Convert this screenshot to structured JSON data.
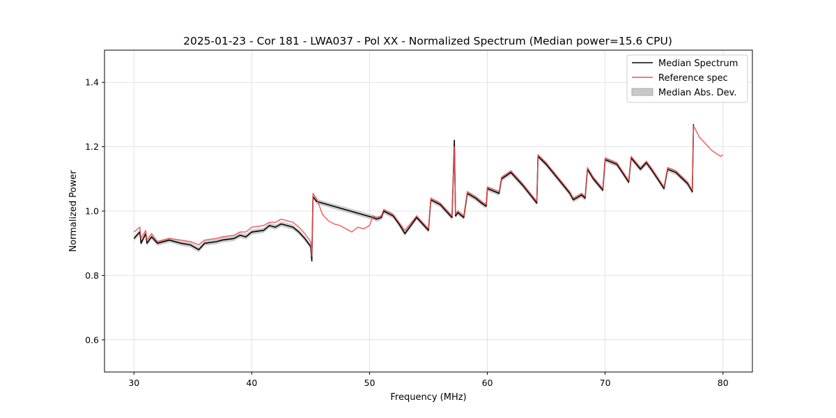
{
  "chart_data": {
    "type": "line",
    "title": "2025-01-23 - Cor 181 - LWA037 - Pol XX - Normalized Spectrum (Median power=15.6 CPU)",
    "xlabel": "Frequency (MHz)",
    "ylabel": "Normalized Power",
    "xlim": [
      27.5,
      82.5
    ],
    "ylim": [
      0.5,
      1.5
    ],
    "xticks": [
      30,
      40,
      50,
      60,
      70,
      80
    ],
    "yticks": [
      0.6,
      0.8,
      1.0,
      1.2,
      1.4
    ],
    "grid": true,
    "legend_position": "top-right",
    "colors": {
      "median": "#000000",
      "reference": "#f05050",
      "mad_fill": "#bbbbbb"
    },
    "series": [
      {
        "name": "Median Spectrum",
        "x": [
          30.0,
          30.5,
          30.6,
          31.0,
          31.1,
          31.5,
          32.0,
          33.0,
          34.0,
          34.8,
          35.5,
          36.0,
          37.0,
          37.5,
          38.5,
          39.0,
          39.5,
          40.0,
          41.0,
          41.5,
          42.0,
          42.5,
          43.0,
          43.5,
          44.0,
          44.5,
          45.0,
          45.1,
          45.2,
          45.5,
          50.3,
          50.6,
          51.0,
          51.2,
          52.0,
          52.5,
          53.0,
          54.0,
          55.0,
          55.2,
          56.0,
          57.0,
          57.2,
          57.3,
          57.5,
          58.0,
          58.3,
          59.0,
          59.5,
          59.9,
          60.0,
          61.0,
          61.2,
          62.0,
          63.0,
          64.2,
          64.3,
          65.0,
          66.0,
          67.0,
          67.3,
          68.0,
          68.3,
          68.5,
          69.0,
          69.8,
          70.0,
          71.0,
          72.0,
          72.2,
          73.0,
          73.5,
          74.0,
          75.0,
          75.3,
          76.0,
          77.0,
          77.4,
          77.5
        ],
        "values": [
          0.915,
          0.935,
          0.9,
          0.93,
          0.9,
          0.92,
          0.9,
          0.91,
          0.9,
          0.895,
          0.88,
          0.9,
          0.905,
          0.91,
          0.915,
          0.925,
          0.92,
          0.935,
          0.94,
          0.955,
          0.95,
          0.96,
          0.955,
          0.95,
          0.935,
          0.915,
          0.89,
          0.845,
          1.045,
          1.03,
          0.98,
          0.975,
          0.98,
          1.0,
          0.985,
          0.96,
          0.93,
          0.98,
          0.94,
          1.035,
          1.02,
          0.98,
          1.22,
          0.985,
          0.995,
          0.98,
          1.055,
          1.04,
          1.025,
          1.015,
          1.07,
          1.055,
          1.1,
          1.12,
          1.08,
          1.025,
          1.17,
          1.145,
          1.1,
          1.055,
          1.035,
          1.05,
          1.04,
          1.13,
          1.1,
          1.065,
          1.16,
          1.145,
          1.09,
          1.165,
          1.13,
          1.15,
          1.125,
          1.07,
          1.13,
          1.12,
          1.085,
          1.06,
          1.27
        ]
      },
      {
        "name": "Reference spec",
        "x": [
          30.0,
          30.5,
          30.6,
          31.0,
          31.1,
          31.5,
          32.0,
          33.0,
          34.0,
          34.8,
          35.5,
          36.0,
          37.0,
          37.5,
          38.5,
          39.0,
          39.5,
          40.0,
          41.0,
          41.5,
          42.0,
          42.5,
          43.0,
          43.5,
          44.0,
          44.5,
          45.0,
          45.1,
          45.2,
          45.5,
          46.0,
          46.5,
          47.0,
          47.5,
          48.0,
          48.5,
          49.0,
          49.5,
          50.0,
          50.3,
          50.6,
          51.0,
          51.2,
          52.0,
          52.5,
          53.0,
          54.0,
          55.0,
          55.2,
          56.0,
          57.0,
          57.2,
          57.3,
          57.5,
          58.0,
          58.3,
          59.0,
          59.5,
          59.9,
          60.0,
          61.0,
          61.2,
          62.0,
          63.0,
          64.2,
          64.3,
          65.0,
          66.0,
          67.0,
          67.3,
          68.0,
          68.3,
          68.5,
          69.0,
          69.8,
          70.0,
          71.0,
          72.0,
          72.2,
          73.0,
          73.5,
          74.0,
          75.0,
          75.3,
          76.0,
          77.0,
          77.4,
          77.5,
          78.0,
          79.0,
          79.8,
          80.0
        ],
        "values": [
          0.935,
          0.95,
          0.915,
          0.94,
          0.91,
          0.93,
          0.905,
          0.915,
          0.91,
          0.905,
          0.895,
          0.91,
          0.915,
          0.92,
          0.925,
          0.935,
          0.935,
          0.95,
          0.955,
          0.965,
          0.965,
          0.975,
          0.97,
          0.965,
          0.95,
          0.93,
          0.905,
          0.86,
          1.055,
          1.04,
          0.99,
          0.97,
          0.96,
          0.955,
          0.945,
          0.935,
          0.95,
          0.945,
          0.955,
          0.985,
          0.98,
          0.985,
          1.005,
          0.99,
          0.965,
          0.94,
          0.985,
          0.945,
          1.04,
          1.025,
          0.985,
          1.2,
          0.99,
          1.0,
          0.985,
          1.06,
          1.045,
          1.03,
          1.02,
          1.075,
          1.06,
          1.105,
          1.125,
          1.085,
          1.03,
          1.175,
          1.15,
          1.105,
          1.06,
          1.04,
          1.055,
          1.045,
          1.135,
          1.105,
          1.07,
          1.165,
          1.15,
          1.095,
          1.17,
          1.135,
          1.155,
          1.13,
          1.075,
          1.135,
          1.125,
          1.09,
          1.065,
          1.265,
          1.23,
          1.19,
          1.17,
          1.175
        ]
      }
    ],
    "fill": {
      "name": "Median Abs. Dev.",
      "half_width": 0.008
    }
  }
}
